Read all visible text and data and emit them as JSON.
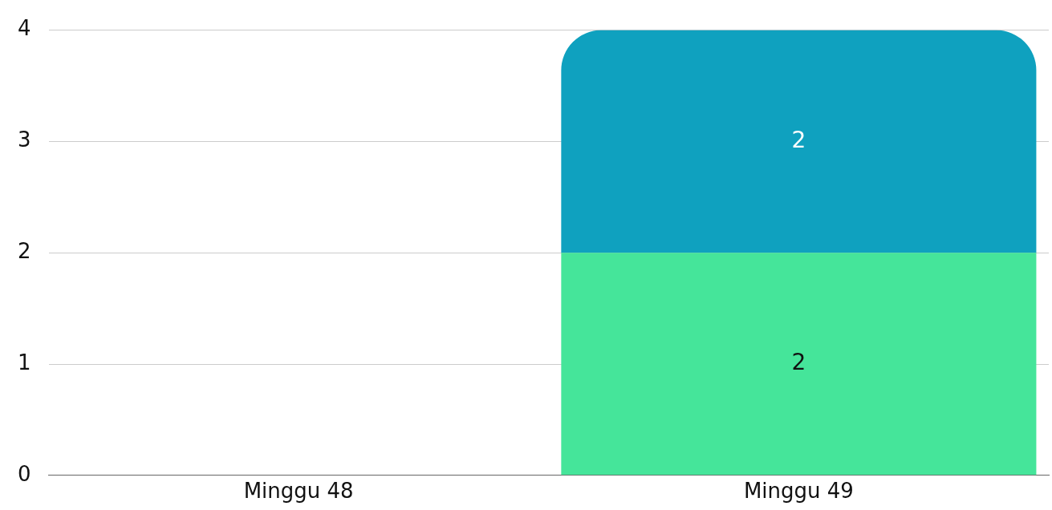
{
  "chart_data": {
    "type": "bar",
    "stacked": true,
    "categories": [
      "Minggu 48",
      "Minggu 49"
    ],
    "series": [
      {
        "color": "#45e59a",
        "values": [
          null,
          2
        ]
      },
      {
        "color": "#0fa1bf",
        "values": [
          null,
          2
        ]
      }
    ],
    "ylim": [
      0,
      4
    ],
    "yticks": [
      0,
      1,
      2,
      3,
      4
    ],
    "grid": "y",
    "data_labels": true,
    "legend": false
  }
}
